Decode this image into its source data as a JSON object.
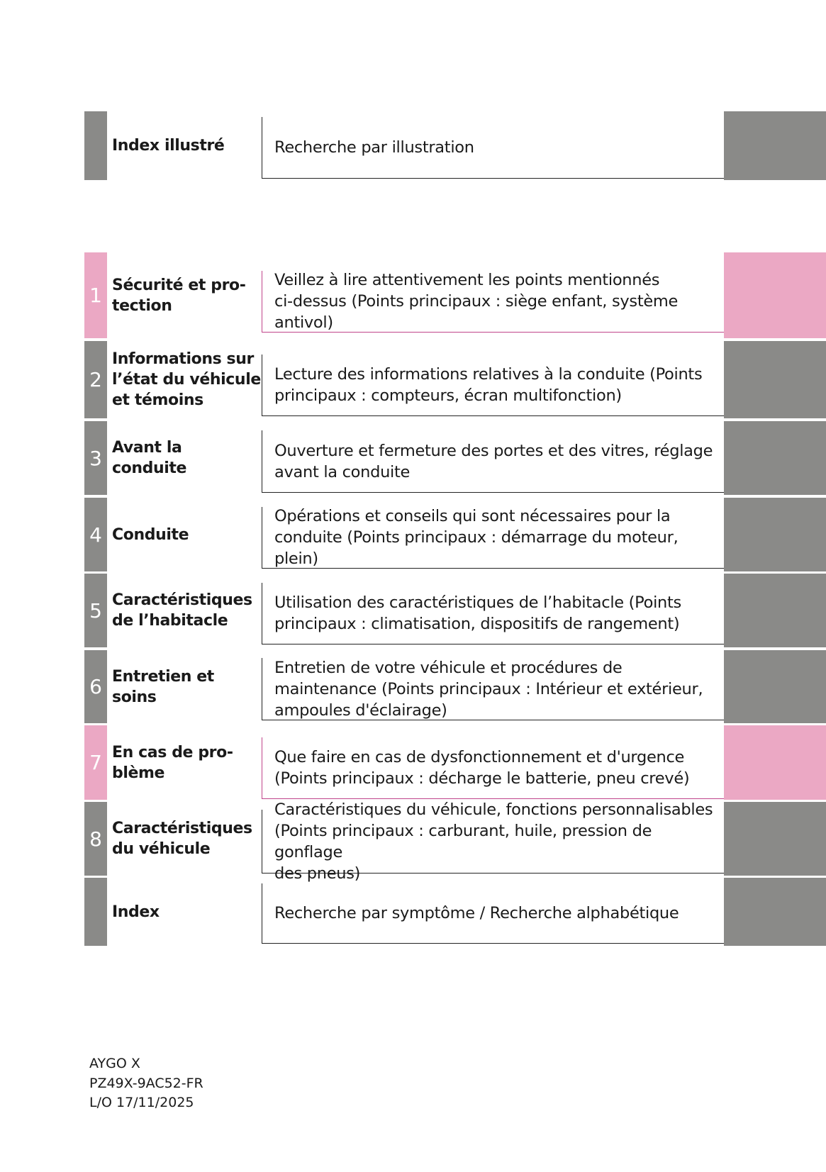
{
  "intro": {
    "title": "Index illustré",
    "description": "Recherche par illustration",
    "color": "#8a8a88"
  },
  "sections": [
    {
      "number": "1",
      "title": "Sécurité et pro-\ntection",
      "description": "Veillez à lire attentivement les points mentionnés\nci-dessus (Points principaux : siège enfant, système\nantivol)",
      "color": "#eba8c4"
    },
    {
      "number": "2",
      "title": "Informations sur\nl’état du véhicule\net témoins",
      "description": "Lecture des informations relatives à la conduite (Points\nprincipaux : compteurs, écran multifonction)",
      "color": "#8a8a88"
    },
    {
      "number": "3",
      "title": "Avant la conduite",
      "description": "Ouverture et fermeture des portes et des vitres, réglage\navant la conduite",
      "color": "#8a8a88"
    },
    {
      "number": "4",
      "title": "Conduite",
      "description": "Opérations et conseils qui sont nécessaires pour la\nconduite (Points principaux : démarrage du moteur, plein)",
      "color": "#8a8a88"
    },
    {
      "number": "5",
      "title": "Caractéristiques\nde l’habitacle",
      "description": "Utilisation des caractéristiques de l’habitacle (Points\nprincipaux : climatisation, dispositifs de rangement)",
      "color": "#8a8a88"
    },
    {
      "number": "6",
      "title": "Entretien et soins",
      "description": "Entretien de votre véhicule et procédures de\nmaintenance (Points principaux : Intérieur et extérieur,\nampoules d'éclairage)",
      "color": "#8a8a88"
    },
    {
      "number": "7",
      "title": "En cas de pro-\nblème",
      "description": "Que faire en cas de dysfonctionnement et d'urgence\n(Points principaux : décharge le batterie, pneu crevé)",
      "color": "#eba8c4"
    },
    {
      "number": "8",
      "title": "Caractéristiques\ndu véhicule",
      "description": "Caractéristiques du véhicule, fonctions personnalisables\n(Points principaux : carburant, huile, pression de gonflage\ndes pneus)",
      "color": "#8a8a88"
    },
    {
      "title": "Index",
      "description": "Recherche par symptôme / Recherche alphabétique",
      "color": "#8a8a88"
    }
  ],
  "footer": {
    "lines": [
      "AYGO X",
      "PZ49X-9AC52-FR",
      "L/O 17/11/2025"
    ]
  }
}
